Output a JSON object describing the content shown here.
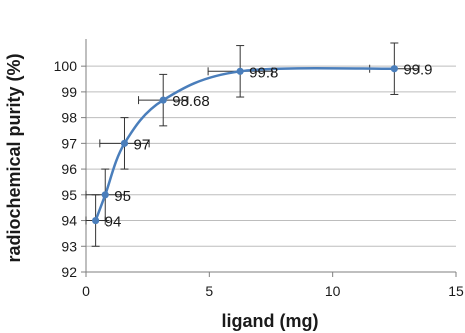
{
  "chart_data": {
    "type": "scatter",
    "xlabel": "ligand (mg)",
    "ylabel": "radiochemical purity (%)",
    "xlim": [
      0,
      15
    ],
    "ylim": [
      92,
      100.9
    ],
    "xticks": [
      "0",
      "5",
      "10",
      "15"
    ],
    "yticks": [
      "92",
      "93",
      "94",
      "95",
      "96",
      "97",
      "98",
      "99",
      "100"
    ],
    "grid": "horizontal",
    "line": "smooth",
    "series": [
      {
        "color": "#4a7ebb",
        "points": [
          {
            "x": 0.39,
            "y": 94,
            "label": "94",
            "yerr": 1,
            "xerr": 0.39
          },
          {
            "x": 0.78,
            "y": 95,
            "label": "95",
            "yerr": 1,
            "xerr": 0.78
          },
          {
            "x": 1.56,
            "y": 97,
            "label": "97",
            "yerr": 1,
            "xerr": 1.0
          },
          {
            "x": 3.13,
            "y": 98.68,
            "label": "98.68",
            "yerr": 1,
            "xerr": 1.0
          },
          {
            "x": 6.25,
            "y": 99.8,
            "label": "99.8",
            "yerr": 1,
            "xerr": 1.3
          },
          {
            "x": 12.5,
            "y": 99.9,
            "label": "99.9",
            "yerr": 1,
            "xerr": 1.0
          }
        ]
      }
    ]
  }
}
